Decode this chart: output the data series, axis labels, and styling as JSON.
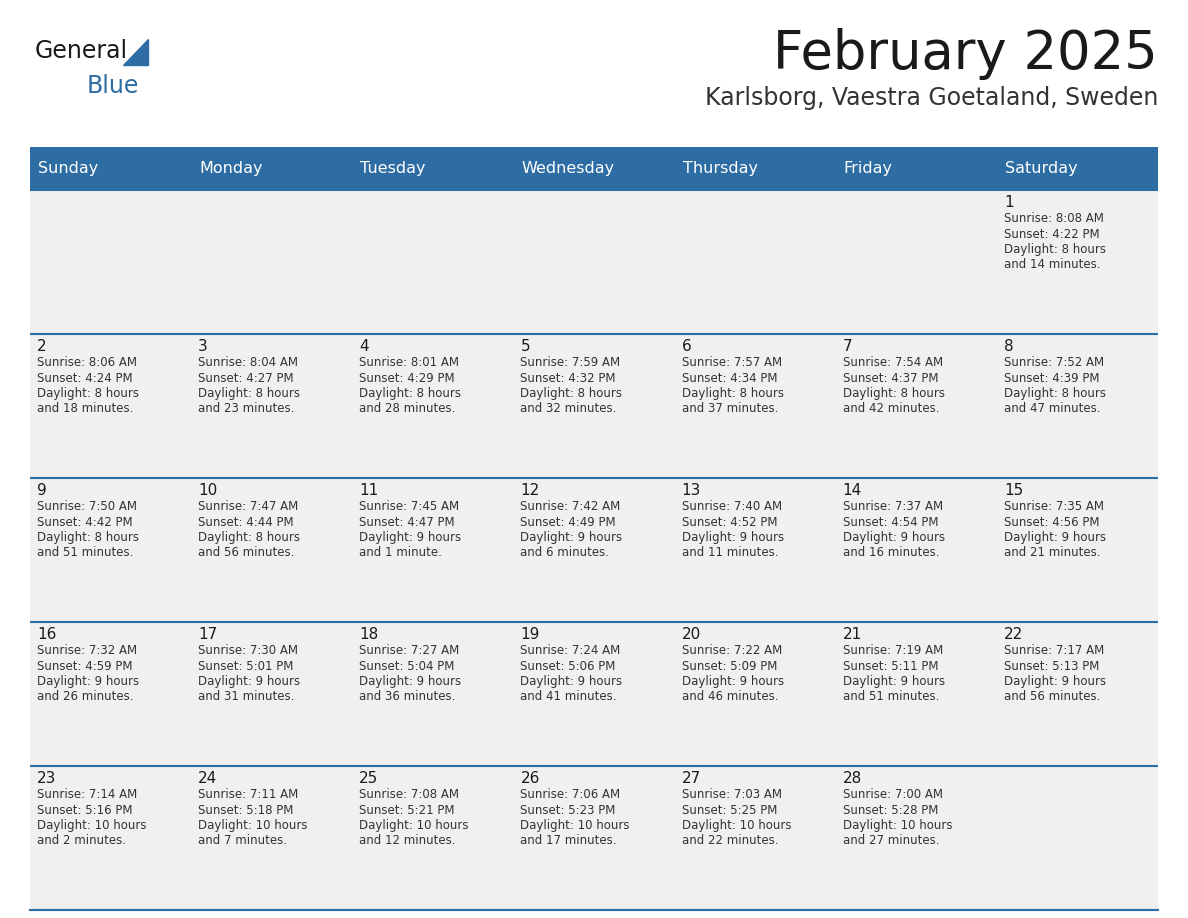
{
  "title": "February 2025",
  "subtitle": "Karlsborg, Vaestra Goetaland, Sweden",
  "days_of_week": [
    "Sunday",
    "Monday",
    "Tuesday",
    "Wednesday",
    "Thursday",
    "Friday",
    "Saturday"
  ],
  "header_bg": "#2E6DA4",
  "header_text": "#FFFFFF",
  "cell_bg": "#F0F0F0",
  "border_color": "#2E6DA4",
  "title_color": "#1a1a1a",
  "subtitle_color": "#333333",
  "day_num_color": "#1a1a1a",
  "cell_text_color": "#333333",
  "calendar_data": [
    {
      "day": 1,
      "row": 0,
      "col": 6,
      "sunrise": "8:08 AM",
      "sunset": "4:22 PM",
      "daylight": "8 hours and 14 minutes."
    },
    {
      "day": 2,
      "row": 1,
      "col": 0,
      "sunrise": "8:06 AM",
      "sunset": "4:24 PM",
      "daylight": "8 hours and 18 minutes."
    },
    {
      "day": 3,
      "row": 1,
      "col": 1,
      "sunrise": "8:04 AM",
      "sunset": "4:27 PM",
      "daylight": "8 hours and 23 minutes."
    },
    {
      "day": 4,
      "row": 1,
      "col": 2,
      "sunrise": "8:01 AM",
      "sunset": "4:29 PM",
      "daylight": "8 hours and 28 minutes."
    },
    {
      "day": 5,
      "row": 1,
      "col": 3,
      "sunrise": "7:59 AM",
      "sunset": "4:32 PM",
      "daylight": "8 hours and 32 minutes."
    },
    {
      "day": 6,
      "row": 1,
      "col": 4,
      "sunrise": "7:57 AM",
      "sunset": "4:34 PM",
      "daylight": "8 hours and 37 minutes."
    },
    {
      "day": 7,
      "row": 1,
      "col": 5,
      "sunrise": "7:54 AM",
      "sunset": "4:37 PM",
      "daylight": "8 hours and 42 minutes."
    },
    {
      "day": 8,
      "row": 1,
      "col": 6,
      "sunrise": "7:52 AM",
      "sunset": "4:39 PM",
      "daylight": "8 hours and 47 minutes."
    },
    {
      "day": 9,
      "row": 2,
      "col": 0,
      "sunrise": "7:50 AM",
      "sunset": "4:42 PM",
      "daylight": "8 hours and 51 minutes."
    },
    {
      "day": 10,
      "row": 2,
      "col": 1,
      "sunrise": "7:47 AM",
      "sunset": "4:44 PM",
      "daylight": "8 hours and 56 minutes."
    },
    {
      "day": 11,
      "row": 2,
      "col": 2,
      "sunrise": "7:45 AM",
      "sunset": "4:47 PM",
      "daylight": "9 hours and 1 minute."
    },
    {
      "day": 12,
      "row": 2,
      "col": 3,
      "sunrise": "7:42 AM",
      "sunset": "4:49 PM",
      "daylight": "9 hours and 6 minutes."
    },
    {
      "day": 13,
      "row": 2,
      "col": 4,
      "sunrise": "7:40 AM",
      "sunset": "4:52 PM",
      "daylight": "9 hours and 11 minutes."
    },
    {
      "day": 14,
      "row": 2,
      "col": 5,
      "sunrise": "7:37 AM",
      "sunset": "4:54 PM",
      "daylight": "9 hours and 16 minutes."
    },
    {
      "day": 15,
      "row": 2,
      "col": 6,
      "sunrise": "7:35 AM",
      "sunset": "4:56 PM",
      "daylight": "9 hours and 21 minutes."
    },
    {
      "day": 16,
      "row": 3,
      "col": 0,
      "sunrise": "7:32 AM",
      "sunset": "4:59 PM",
      "daylight": "9 hours and 26 minutes."
    },
    {
      "day": 17,
      "row": 3,
      "col": 1,
      "sunrise": "7:30 AM",
      "sunset": "5:01 PM",
      "daylight": "9 hours and 31 minutes."
    },
    {
      "day": 18,
      "row": 3,
      "col": 2,
      "sunrise": "7:27 AM",
      "sunset": "5:04 PM",
      "daylight": "9 hours and 36 minutes."
    },
    {
      "day": 19,
      "row": 3,
      "col": 3,
      "sunrise": "7:24 AM",
      "sunset": "5:06 PM",
      "daylight": "9 hours and 41 minutes."
    },
    {
      "day": 20,
      "row": 3,
      "col": 4,
      "sunrise": "7:22 AM",
      "sunset": "5:09 PM",
      "daylight": "9 hours and 46 minutes."
    },
    {
      "day": 21,
      "row": 3,
      "col": 5,
      "sunrise": "7:19 AM",
      "sunset": "5:11 PM",
      "daylight": "9 hours and 51 minutes."
    },
    {
      "day": 22,
      "row": 3,
      "col": 6,
      "sunrise": "7:17 AM",
      "sunset": "5:13 PM",
      "daylight": "9 hours and 56 minutes."
    },
    {
      "day": 23,
      "row": 4,
      "col": 0,
      "sunrise": "7:14 AM",
      "sunset": "5:16 PM",
      "daylight": "10 hours and 2 minutes."
    },
    {
      "day": 24,
      "row": 4,
      "col": 1,
      "sunrise": "7:11 AM",
      "sunset": "5:18 PM",
      "daylight": "10 hours and 7 minutes."
    },
    {
      "day": 25,
      "row": 4,
      "col": 2,
      "sunrise": "7:08 AM",
      "sunset": "5:21 PM",
      "daylight": "10 hours and 12 minutes."
    },
    {
      "day": 26,
      "row": 4,
      "col": 3,
      "sunrise": "7:06 AM",
      "sunset": "5:23 PM",
      "daylight": "10 hours and 17 minutes."
    },
    {
      "day": 27,
      "row": 4,
      "col": 4,
      "sunrise": "7:03 AM",
      "sunset": "5:25 PM",
      "daylight": "10 hours and 22 minutes."
    },
    {
      "day": 28,
      "row": 4,
      "col": 5,
      "sunrise": "7:00 AM",
      "sunset": "5:28 PM",
      "daylight": "10 hours and 27 minutes."
    }
  ],
  "logo_text_general": "General",
  "logo_text_blue": "Blue",
  "logo_color_general": "#1a1a1a",
  "logo_color_blue": "#2E6DA4",
  "logo_triangle_color": "#2E6DA4",
  "figsize": [
    11.88,
    9.18
  ],
  "dpi": 100
}
